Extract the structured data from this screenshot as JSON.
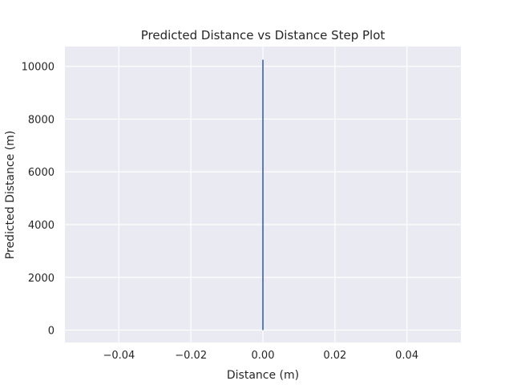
{
  "chart_data": {
    "type": "line",
    "drawstyle": "steps",
    "title": "Predicted Distance vs Distance Step Plot",
    "xlabel": "Distance (m)",
    "ylabel": "Predicted Distance (m)",
    "xlim": [
      -0.055,
      0.055
    ],
    "ylim": [
      -470,
      10750
    ],
    "x_ticks": [
      -0.04,
      -0.02,
      0.0,
      0.02,
      0.04
    ],
    "x_tick_labels": [
      "−0.04",
      "−0.02",
      "0.00",
      "0.02",
      "0.04"
    ],
    "y_ticks": [
      0,
      2000,
      4000,
      6000,
      8000,
      10000
    ],
    "y_tick_labels": [
      "0",
      "2000",
      "4000",
      "6000",
      "8000",
      "10000"
    ],
    "grid": true,
    "series": [
      {
        "color": "#4c72b0",
        "x": [
          0,
          0
        ],
        "y": [
          0,
          10250
        ]
      }
    ],
    "colors": {
      "plot_background": "#eaeaf2",
      "grid": "#ffffff",
      "text": "#262626"
    }
  }
}
